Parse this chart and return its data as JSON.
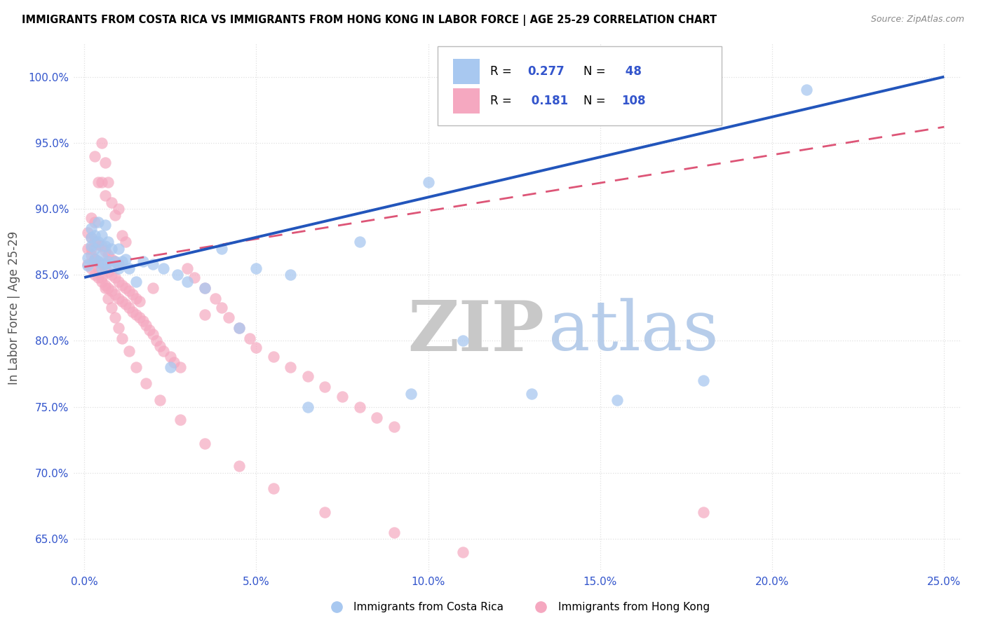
{
  "title": "IMMIGRANTS FROM COSTA RICA VS IMMIGRANTS FROM HONG KONG IN LABOR FORCE | AGE 25-29 CORRELATION CHART",
  "source": "Source: ZipAtlas.com",
  "ylabel": "In Labor Force | Age 25-29",
  "xlabel_vals": [
    0.0,
    0.05,
    0.1,
    0.15,
    0.2,
    0.25
  ],
  "xlabel_ticks": [
    "0.0%",
    "5.0%",
    "10.0%",
    "15.0%",
    "20.0%",
    "25.0%"
  ],
  "ylabel_vals": [
    0.65,
    0.7,
    0.75,
    0.8,
    0.85,
    0.9,
    0.95,
    1.0
  ],
  "ylabel_ticks": [
    "65.0%",
    "70.0%",
    "75.0%",
    "80.0%",
    "85.0%",
    "90.0%",
    "95.0%",
    "100.0%"
  ],
  "xlim": [
    -0.003,
    0.255
  ],
  "ylim": [
    0.625,
    1.025
  ],
  "watermark_zip": "ZIP",
  "watermark_atlas": "atlas",
  "series1_label": "Immigrants from Costa Rica",
  "series2_label": "Immigrants from Hong Kong",
  "series1_R": 0.277,
  "series1_N": 48,
  "series2_R": 0.181,
  "series2_N": 108,
  "series1_dot_color": "#A8C8F0",
  "series2_dot_color": "#F5A8C0",
  "series1_line_color": "#2255BB",
  "series2_line_color": "#DD5577",
  "tick_color": "#3355CC",
  "grid_color": "#e0e0e0",
  "watermark_color": "#d0d8e8",
  "legend_text_color": "#3355CC",
  "cr_x": [
    0.001,
    0.001,
    0.002,
    0.002,
    0.002,
    0.003,
    0.003,
    0.003,
    0.004,
    0.004,
    0.004,
    0.005,
    0.005,
    0.005,
    0.006,
    0.006,
    0.006,
    0.007,
    0.007,
    0.008,
    0.008,
    0.009,
    0.01,
    0.01,
    0.011,
    0.012,
    0.013,
    0.015,
    0.017,
    0.02,
    0.023,
    0.027,
    0.03,
    0.035,
    0.04,
    0.05,
    0.06,
    0.08,
    0.095,
    0.11,
    0.13,
    0.155,
    0.18,
    0.21,
    0.1,
    0.065,
    0.045,
    0.025
  ],
  "cr_y": [
    0.857,
    0.863,
    0.872,
    0.878,
    0.885,
    0.862,
    0.87,
    0.88,
    0.86,
    0.875,
    0.89,
    0.855,
    0.865,
    0.88,
    0.858,
    0.872,
    0.888,
    0.86,
    0.875,
    0.858,
    0.87,
    0.86,
    0.855,
    0.87,
    0.86,
    0.862,
    0.855,
    0.845,
    0.86,
    0.858,
    0.855,
    0.85,
    0.845,
    0.84,
    0.87,
    0.855,
    0.85,
    0.875,
    0.76,
    0.8,
    0.76,
    0.755,
    0.77,
    0.99,
    0.92,
    0.75,
    0.81,
    0.78
  ],
  "hk_x": [
    0.001,
    0.001,
    0.001,
    0.002,
    0.002,
    0.002,
    0.002,
    0.003,
    0.003,
    0.003,
    0.003,
    0.003,
    0.004,
    0.004,
    0.004,
    0.004,
    0.005,
    0.005,
    0.005,
    0.005,
    0.005,
    0.006,
    0.006,
    0.006,
    0.006,
    0.006,
    0.007,
    0.007,
    0.007,
    0.007,
    0.008,
    0.008,
    0.008,
    0.008,
    0.009,
    0.009,
    0.009,
    0.009,
    0.01,
    0.01,
    0.01,
    0.01,
    0.011,
    0.011,
    0.011,
    0.012,
    0.012,
    0.012,
    0.013,
    0.013,
    0.014,
    0.014,
    0.015,
    0.015,
    0.016,
    0.016,
    0.017,
    0.018,
    0.019,
    0.02,
    0.021,
    0.022,
    0.023,
    0.025,
    0.026,
    0.028,
    0.03,
    0.032,
    0.035,
    0.038,
    0.04,
    0.042,
    0.045,
    0.048,
    0.05,
    0.055,
    0.06,
    0.065,
    0.07,
    0.075,
    0.08,
    0.085,
    0.09,
    0.002,
    0.003,
    0.004,
    0.005,
    0.006,
    0.007,
    0.008,
    0.009,
    0.01,
    0.011,
    0.013,
    0.015,
    0.018,
    0.022,
    0.028,
    0.035,
    0.045,
    0.055,
    0.07,
    0.09,
    0.11,
    0.01,
    0.02,
    0.035,
    0.18
  ],
  "hk_y": [
    0.858,
    0.87,
    0.882,
    0.855,
    0.865,
    0.878,
    0.893,
    0.85,
    0.862,
    0.875,
    0.89,
    0.94,
    0.848,
    0.86,
    0.873,
    0.92,
    0.845,
    0.858,
    0.872,
    0.92,
    0.95,
    0.842,
    0.855,
    0.868,
    0.91,
    0.935,
    0.84,
    0.852,
    0.865,
    0.92,
    0.838,
    0.85,
    0.862,
    0.905,
    0.835,
    0.848,
    0.86,
    0.895,
    0.832,
    0.845,
    0.858,
    0.9,
    0.83,
    0.842,
    0.88,
    0.828,
    0.84,
    0.875,
    0.825,
    0.838,
    0.822,
    0.835,
    0.82,
    0.832,
    0.818,
    0.83,
    0.815,
    0.812,
    0.808,
    0.805,
    0.8,
    0.796,
    0.792,
    0.788,
    0.784,
    0.78,
    0.855,
    0.848,
    0.84,
    0.832,
    0.825,
    0.818,
    0.81,
    0.802,
    0.795,
    0.788,
    0.78,
    0.773,
    0.765,
    0.758,
    0.75,
    0.742,
    0.735,
    0.87,
    0.862,
    0.855,
    0.848,
    0.84,
    0.832,
    0.825,
    0.818,
    0.81,
    0.802,
    0.792,
    0.78,
    0.768,
    0.755,
    0.74,
    0.722,
    0.705,
    0.688,
    0.67,
    0.655,
    0.64,
    0.858,
    0.84,
    0.82,
    0.67
  ]
}
